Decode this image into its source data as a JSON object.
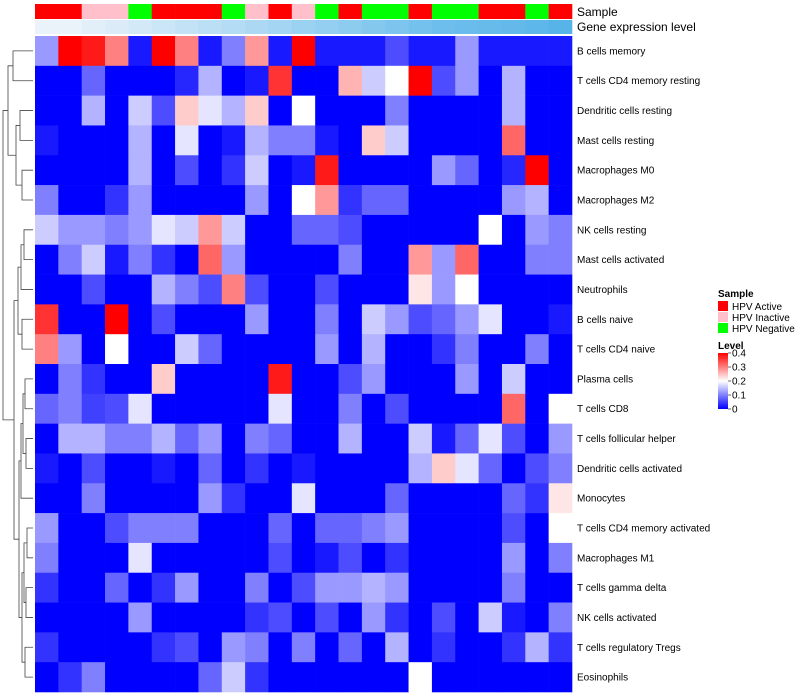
{
  "chart_data": {
    "type": "heatmap",
    "title": "",
    "annotations": {
      "sample_label": "Sample",
      "expression_label": "Gene expression level",
      "sample_groups": [
        "HPV Active",
        "HPV Active",
        "HPV Inactive",
        "HPV Inactive",
        "HPV Negative",
        "HPV Active",
        "HPV Active",
        "HPV Active",
        "HPV Negative",
        "HPV Inactive",
        "HPV Active",
        "HPV Inactive",
        "HPV Negative",
        "HPV Active",
        "HPV Negative",
        "HPV Negative",
        "HPV Active",
        "HPV Negative",
        "HPV Negative",
        "HPV Active",
        "HPV Active",
        "HPV Negative",
        "HPV Active"
      ],
      "expression_values": [
        0.05,
        0.05,
        0.1,
        0.15,
        0.2,
        0.25,
        0.3,
        0.35,
        0.4,
        0.45,
        0.5,
        0.55,
        0.6,
        0.65,
        0.7,
        0.75,
        0.8,
        0.85,
        0.88,
        0.9,
        0.92,
        0.95,
        1.0
      ]
    },
    "rows": [
      "B cells memory",
      "T cells CD4 memory resting",
      "Dendritic cells resting",
      "Mast cells resting",
      "Macrophages M0",
      "Macrophages M2",
      "NK cells resting",
      "Mast cells activated",
      "Neutrophils",
      "B cells naive",
      "T cells CD4 naive",
      "Plasma cells",
      "T cells CD8",
      "T cells follicular helper",
      "Dendritic cells activated",
      "Monocytes",
      "T cells CD4 memory activated",
      "Macrophages M1",
      "T cells gamma delta",
      "NK cells activated",
      "T cells regulatory  Tregs",
      "Eosinophils"
    ],
    "values": [
      [
        0.12,
        0.4,
        0.38,
        0.3,
        0.02,
        0.4,
        0.3,
        0.02,
        0.1,
        0.28,
        0.02,
        0.4,
        0.02,
        0.02,
        0.02,
        0.06,
        0.02,
        0.02,
        0.12,
        0.02,
        0.02,
        0.02,
        0.02
      ],
      [
        0.0,
        0.0,
        0.08,
        0.0,
        0.0,
        0.0,
        0.03,
        0.14,
        0.0,
        0.02,
        0.36,
        0.0,
        0.0,
        0.26,
        0.16,
        0.2,
        0.4,
        0.06,
        0.12,
        0.0,
        0.14,
        0.0,
        0.0
      ],
      [
        0.0,
        0.0,
        0.14,
        0.0,
        0.16,
        0.06,
        0.24,
        0.18,
        0.14,
        0.24,
        0.0,
        0.2,
        0.0,
        0.0,
        0.0,
        0.1,
        0.0,
        0.0,
        0.0,
        0.0,
        0.14,
        0.0,
        0.0
      ],
      [
        0.02,
        0.0,
        0.0,
        0.0,
        0.14,
        0.0,
        0.18,
        0.0,
        0.02,
        0.14,
        0.1,
        0.1,
        0.02,
        0.0,
        0.24,
        0.16,
        0.0,
        0.0,
        0.0,
        0.0,
        0.32,
        0.0,
        0.0
      ],
      [
        0.0,
        0.0,
        0.0,
        0.0,
        0.14,
        0.0,
        0.06,
        0.0,
        0.04,
        0.16,
        0.0,
        0.02,
        0.38,
        0.0,
        0.0,
        0.0,
        0.0,
        0.12,
        0.08,
        0.0,
        0.03,
        0.4,
        0.0
      ],
      [
        0.1,
        0.0,
        0.0,
        0.04,
        0.12,
        0.0,
        0.0,
        0.0,
        0.0,
        0.12,
        0.0,
        0.2,
        0.28,
        0.04,
        0.08,
        0.08,
        0.0,
        0.0,
        0.0,
        0.0,
        0.12,
        0.14,
        0.0
      ],
      [
        0.16,
        0.12,
        0.12,
        0.1,
        0.12,
        0.18,
        0.16,
        0.28,
        0.16,
        0.0,
        0.0,
        0.08,
        0.08,
        0.06,
        0.0,
        0.0,
        0.0,
        0.0,
        0.0,
        0.2,
        0.0,
        0.12,
        0.1
      ],
      [
        0.0,
        0.1,
        0.16,
        0.02,
        0.1,
        0.04,
        0.0,
        0.32,
        0.12,
        0.0,
        0.0,
        0.0,
        0.0,
        0.1,
        0.0,
        0.0,
        0.28,
        0.12,
        0.32,
        0.0,
        0.0,
        0.1,
        0.1
      ],
      [
        0.0,
        0.0,
        0.06,
        0.0,
        0.0,
        0.14,
        0.1,
        0.06,
        0.3,
        0.06,
        0.0,
        0.0,
        0.06,
        0.0,
        0.0,
        0.0,
        0.22,
        0.12,
        0.2,
        0.0,
        0.0,
        0.0,
        0.0
      ],
      [
        0.36,
        0.0,
        0.0,
        0.4,
        0.0,
        0.06,
        0.0,
        0.0,
        0.0,
        0.12,
        0.0,
        0.0,
        0.1,
        0.0,
        0.16,
        0.12,
        0.06,
        0.08,
        0.12,
        0.18,
        0.0,
        0.0,
        0.02
      ],
      [
        0.3,
        0.12,
        0.0,
        0.2,
        0.0,
        0.0,
        0.16,
        0.08,
        0.0,
        0.0,
        0.0,
        0.0,
        0.12,
        0.0,
        0.14,
        0.0,
        0.0,
        0.04,
        0.1,
        0.0,
        0.0,
        0.1,
        0.0
      ],
      [
        0.0,
        0.1,
        0.04,
        0.0,
        0.0,
        0.24,
        0.0,
        0.0,
        0.0,
        0.0,
        0.38,
        0.0,
        0.0,
        0.06,
        0.12,
        0.0,
        0.0,
        0.0,
        0.12,
        0.0,
        0.16,
        0.0,
        0.0
      ],
      [
        0.08,
        0.1,
        0.05,
        0.06,
        0.18,
        0.0,
        0.0,
        0.0,
        0.0,
        0.0,
        0.18,
        0.0,
        0.0,
        0.1,
        0.0,
        0.06,
        0.0,
        0.0,
        0.0,
        0.0,
        0.32,
        0.0,
        0.2
      ],
      [
        0.0,
        0.14,
        0.14,
        0.1,
        0.1,
        0.14,
        0.08,
        0.12,
        0.0,
        0.1,
        0.08,
        0.0,
        0.0,
        0.14,
        0.0,
        0.0,
        0.16,
        0.02,
        0.08,
        0.18,
        0.06,
        0.0,
        0.12
      ],
      [
        0.02,
        0.0,
        0.06,
        0.0,
        0.0,
        0.02,
        0.0,
        0.08,
        0.0,
        0.04,
        0.0,
        0.02,
        0.0,
        0.0,
        0.0,
        0.0,
        0.14,
        0.24,
        0.18,
        0.08,
        0.0,
        0.06,
        0.1
      ],
      [
        0.0,
        0.0,
        0.1,
        0.0,
        0.0,
        0.0,
        0.0,
        0.12,
        0.04,
        0.0,
        0.0,
        0.18,
        0.0,
        0.0,
        0.0,
        0.08,
        0.0,
        0.0,
        0.0,
        0.0,
        0.08,
        0.04,
        0.22
      ],
      [
        0.12,
        0.0,
        0.0,
        0.06,
        0.1,
        0.1,
        0.1,
        0.0,
        0.0,
        0.0,
        0.08,
        0.0,
        0.08,
        0.08,
        0.1,
        0.12,
        0.0,
        0.0,
        0.0,
        0.0,
        0.06,
        0.0,
        0.2
      ],
      [
        0.1,
        0.0,
        0.0,
        0.0,
        0.18,
        0.0,
        0.0,
        0.0,
        0.0,
        0.0,
        0.06,
        0.0,
        0.02,
        0.06,
        0.0,
        0.04,
        0.0,
        0.0,
        0.0,
        0.0,
        0.12,
        0.0,
        0.1
      ],
      [
        0.04,
        0.0,
        0.0,
        0.08,
        0.0,
        0.04,
        0.12,
        0.0,
        0.0,
        0.1,
        0.0,
        0.06,
        0.12,
        0.12,
        0.14,
        0.12,
        0.0,
        0.0,
        0.0,
        0.0,
        0.1,
        0.0,
        0.0
      ],
      [
        0.0,
        0.0,
        0.0,
        0.0,
        0.12,
        0.0,
        0.0,
        0.0,
        0.0,
        0.04,
        0.06,
        0.0,
        0.06,
        0.0,
        0.12,
        0.04,
        0.0,
        0.06,
        0.0,
        0.16,
        0.02,
        0.0,
        0.1
      ],
      [
        0.04,
        0.0,
        0.0,
        0.0,
        0.0,
        0.04,
        0.06,
        0.0,
        0.12,
        0.1,
        0.0,
        0.1,
        0.0,
        0.08,
        0.0,
        0.14,
        0.0,
        0.04,
        0.0,
        0.0,
        0.04,
        0.14,
        0.04
      ],
      [
        0.0,
        0.04,
        0.1,
        0.0,
        0.0,
        0.0,
        0.0,
        0.08,
        0.16,
        0.04,
        0.0,
        0.0,
        0.0,
        0.0,
        0.0,
        0.0,
        0.2,
        0.0,
        0.0,
        0.0,
        0.0,
        0.0,
        0.0
      ]
    ],
    "color_scale": {
      "min": 0,
      "mid": 0.2,
      "max": 0.4,
      "low_color": "#0000ff",
      "mid_color": "#ffffff",
      "high_color": "#ff0000"
    },
    "legend": {
      "sample_title": "Sample",
      "sample_items": [
        {
          "label": "HPV Active",
          "color": "#ff0000"
        },
        {
          "label": "HPV Inactive",
          "color": "#ffc0cb"
        },
        {
          "label": "HPV Negative",
          "color": "#00ff00"
        }
      ],
      "level_title": "Level",
      "level_ticks": [
        "0.4",
        "0.3",
        "0.2",
        "0.1",
        "0"
      ],
      "level_tick_values": [
        0.4,
        0.3,
        0.2,
        0.1,
        0
      ]
    },
    "dendrogram": {
      "rows": true,
      "columns": false
    },
    "expression_colors": {
      "low": "#f2f6fb",
      "high": "#56b4e9"
    }
  }
}
